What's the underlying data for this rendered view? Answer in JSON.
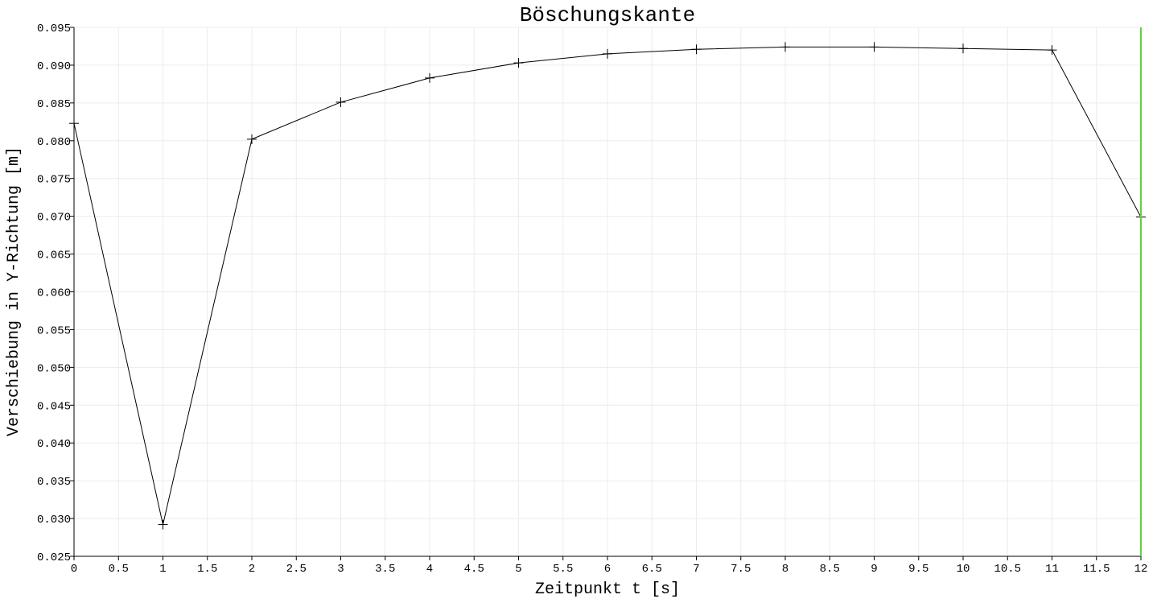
{
  "chart_data": {
    "type": "line",
    "title": "Böschungskante",
    "xlabel": "Zeitpunkt t [s]",
    "ylabel": "Verschiebung in Y-Richtung [m]",
    "xlim": [
      0,
      12
    ],
    "ylim": [
      0.025,
      0.095
    ],
    "x_ticks": [
      "0",
      "0.5",
      "1",
      "1.5",
      "2",
      "2.5",
      "3",
      "3.5",
      "4",
      "4.5",
      "5",
      "5.5",
      "6",
      "6.5",
      "7",
      "7.5",
      "8",
      "8.5",
      "9",
      "9.5",
      "10",
      "10.5",
      "11",
      "11.5",
      "12"
    ],
    "y_ticks": [
      "0.025",
      "0.030",
      "0.035",
      "0.040",
      "0.045",
      "0.050",
      "0.055",
      "0.060",
      "0.065",
      "0.070",
      "0.075",
      "0.080",
      "0.085",
      "0.090",
      "0.095"
    ],
    "grid": true,
    "series": [
      {
        "x": [
          0,
          1,
          2,
          3,
          4,
          5,
          6,
          7,
          8,
          9,
          10,
          11,
          12
        ],
        "y": [
          0.0823,
          0.0292,
          0.0802,
          0.0851,
          0.0883,
          0.0903,
          0.0915,
          0.0921,
          0.0924,
          0.0924,
          0.0922,
          0.092,
          0.0699
        ],
        "color": "#000000",
        "marker": "plus"
      }
    ],
    "vertical_marker": {
      "x": 12,
      "color": "#66cc44"
    }
  }
}
